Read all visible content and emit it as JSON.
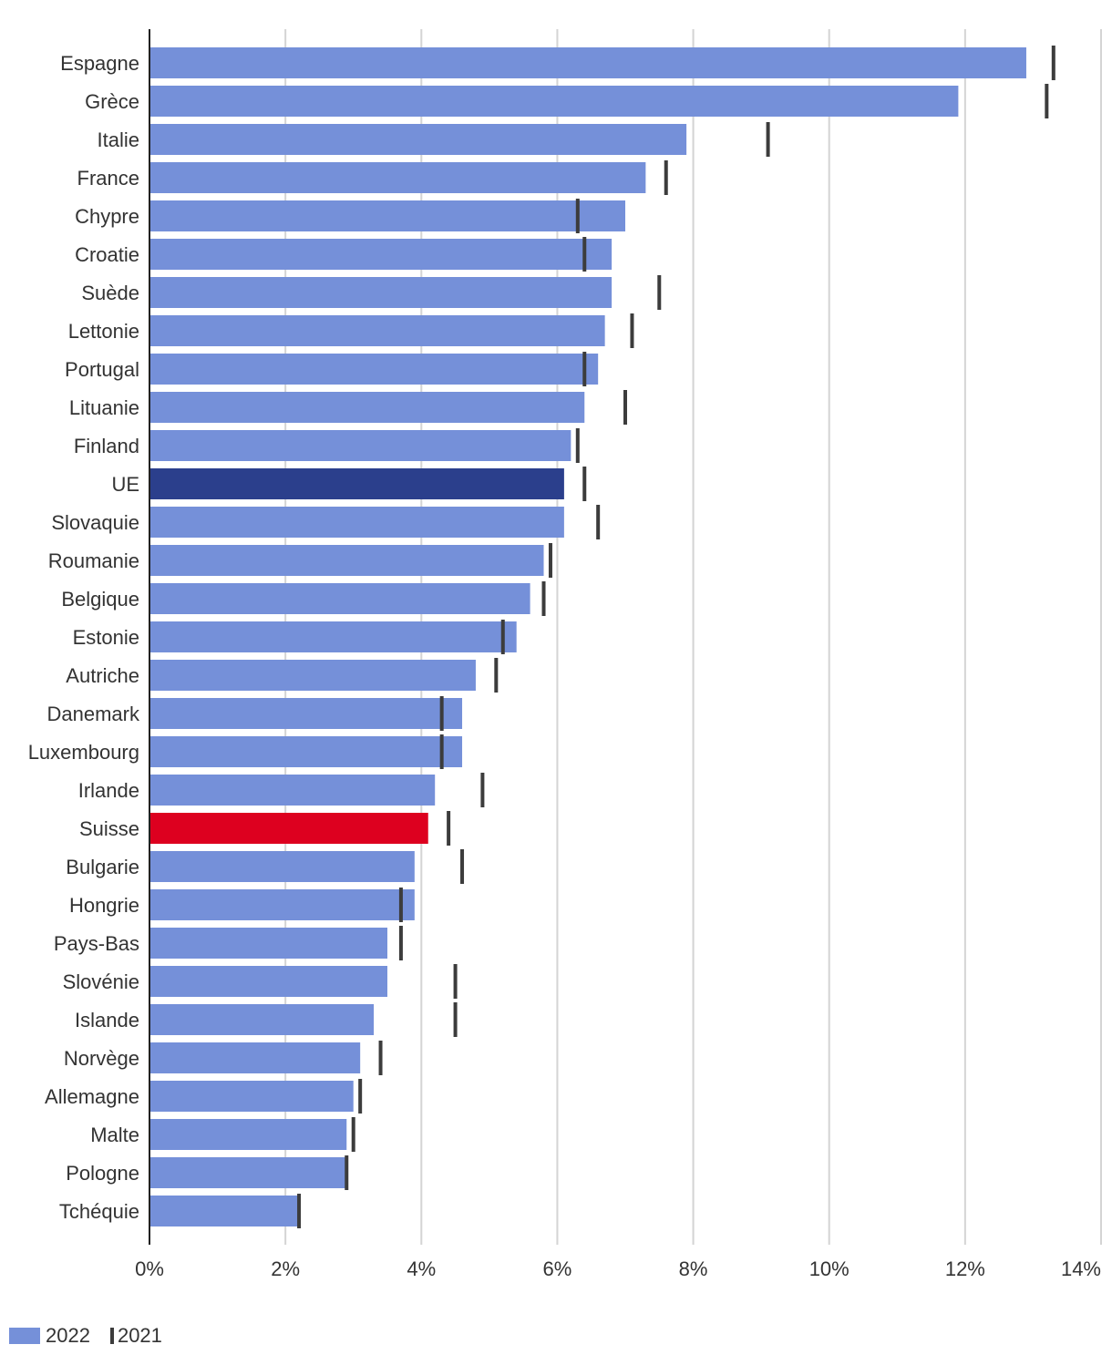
{
  "chart_data": {
    "type": "bar",
    "orientation": "horizontal",
    "categories": [
      "Espagne",
      "Grèce",
      "Italie",
      "France",
      "Chypre",
      "Croatie",
      "Suède",
      "Lettonie",
      "Portugal",
      "Lituanie",
      "Finland",
      "UE",
      "Slovaquie",
      "Roumanie",
      "Belgique",
      "Estonie",
      "Autriche",
      "Danemark",
      "Luxembourg",
      "Irlande",
      "Suisse",
      "Bulgarie",
      "Hongrie",
      "Pays-Bas",
      "Slovénie",
      "Islande",
      "Norvège",
      "Allemagne",
      "Malte",
      "Pologne",
      "Tchéquie"
    ],
    "series": [
      {
        "name": "2022",
        "mark": "bar",
        "color": "#7590d9",
        "values": [
          12.9,
          11.9,
          7.9,
          7.3,
          7.0,
          6.8,
          6.8,
          6.7,
          6.6,
          6.4,
          6.2,
          6.1,
          6.1,
          5.8,
          5.6,
          5.4,
          4.8,
          4.6,
          4.6,
          4.2,
          4.1,
          3.9,
          3.9,
          3.5,
          3.5,
          3.3,
          3.1,
          3.0,
          2.9,
          2.9,
          2.2
        ]
      },
      {
        "name": "2021",
        "mark": "tick",
        "color": "#3c3c3c",
        "values": [
          13.3,
          13.2,
          9.1,
          7.6,
          6.3,
          6.4,
          7.5,
          7.1,
          6.4,
          7.0,
          6.3,
          6.4,
          6.6,
          5.9,
          5.8,
          5.2,
          5.1,
          4.3,
          4.3,
          4.9,
          4.4,
          4.6,
          3.7,
          3.7,
          4.5,
          4.5,
          3.4,
          3.1,
          3.0,
          2.9,
          2.2
        ]
      }
    ],
    "highlights": {
      "UE": "#2b3f8c",
      "Suisse": "#dd001f"
    },
    "xlim": [
      0,
      14
    ],
    "xticks": [
      0,
      2,
      4,
      6,
      8,
      10,
      12,
      14
    ],
    "xtick_labels": [
      "0%",
      "2%",
      "4%",
      "6%",
      "8%",
      "10%",
      "12%",
      "14%"
    ],
    "grid": true,
    "legend_position": "bottom-left",
    "title": "",
    "xlabel": "",
    "ylabel": ""
  },
  "legend": {
    "bar_label": "2022",
    "tick_label": "2021",
    "bar_color": "#7590d9",
    "tick_color": "#3c3c3c"
  }
}
